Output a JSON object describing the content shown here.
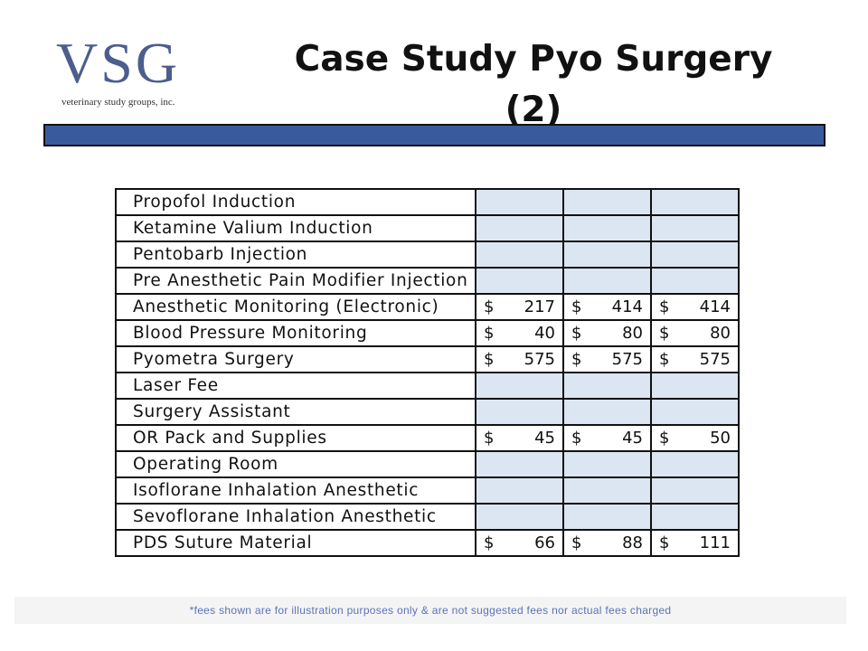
{
  "logo": {
    "main": "VSG",
    "sub": "veterinary study groups, inc."
  },
  "title": "Case Study Pyo Surgery (2)",
  "currency_symbol": "$",
  "rows": [
    {
      "label": "Propofol Induction",
      "values": [
        "",
        "",
        ""
      ]
    },
    {
      "label": "Ketamine Valium Induction",
      "values": [
        "",
        "",
        ""
      ]
    },
    {
      "label": "Pentobarb Injection",
      "values": [
        "",
        "",
        ""
      ]
    },
    {
      "label": "Pre Anesthetic Pain Modifier Injection",
      "values": [
        "",
        "",
        ""
      ]
    },
    {
      "label": "Anesthetic Monitoring (Electronic)",
      "values": [
        "217",
        "414",
        "414"
      ]
    },
    {
      "label": "Blood Pressure Monitoring",
      "values": [
        "40",
        "80",
        "80"
      ]
    },
    {
      "label": "Pyometra Surgery",
      "values": [
        "575",
        "575",
        "575"
      ]
    },
    {
      "label": "Laser Fee",
      "values": [
        "",
        "",
        ""
      ]
    },
    {
      "label": "Surgery Assistant",
      "values": [
        "",
        "",
        ""
      ]
    },
    {
      "label": "OR Pack and Supplies",
      "values": [
        "45",
        "45",
        "50"
      ]
    },
    {
      "label": "Operating Room",
      "values": [
        "",
        "",
        ""
      ]
    },
    {
      "label": "Isoflorane Inhalation Anesthetic",
      "values": [
        "",
        "",
        ""
      ]
    },
    {
      "label": "Sevoflorane Inhalation Anesthetic",
      "values": [
        "",
        "",
        ""
      ]
    },
    {
      "label": "PDS Suture Material",
      "values": [
        "66",
        "88",
        "111"
      ]
    }
  ],
  "footnote": "*fees shown are for illustration purposes only & are not suggested fees nor actual fees charged",
  "colors": {
    "title_bar": "#3a5a9e",
    "empty_cell": "#dce6f2",
    "logo": "#4b5e8d",
    "footnote": "#5a74b8"
  }
}
